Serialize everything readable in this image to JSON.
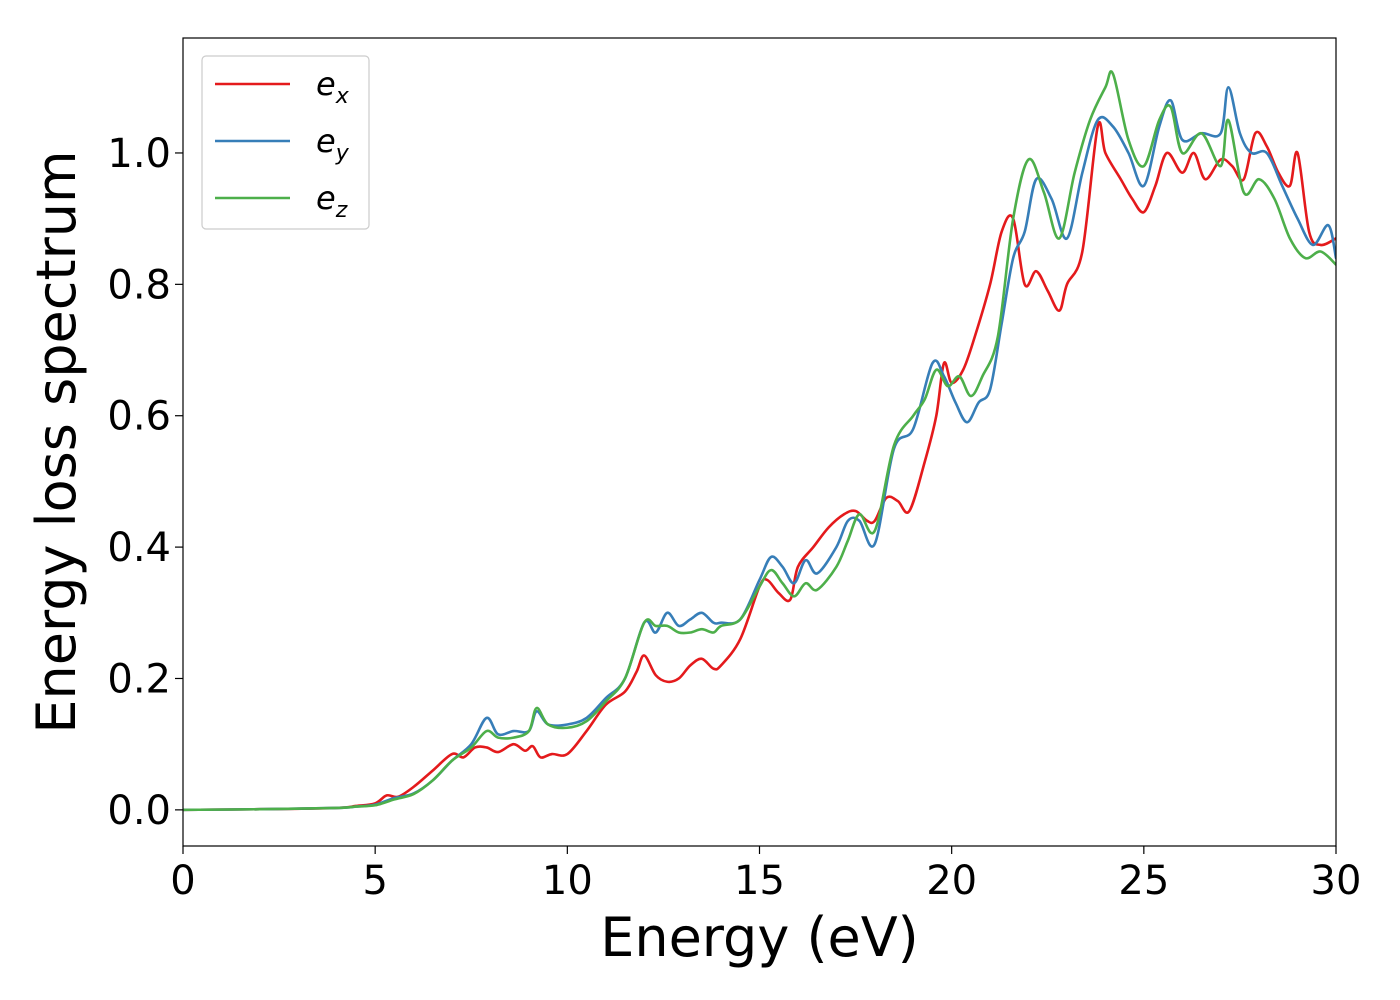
{
  "chart_data": {
    "type": "line",
    "title": "",
    "xlabel": "Energy (eV)",
    "ylabel": "Energy loss spectrum",
    "xlim": [
      0,
      30
    ],
    "ylim": [
      -0.055,
      1.175
    ],
    "xticks": [
      0,
      5,
      10,
      15,
      20,
      25,
      30
    ],
    "yticks": [
      0.0,
      0.2,
      0.4,
      0.6,
      0.8,
      1.0
    ],
    "ytick_labels": [
      "0.0",
      "0.2",
      "0.4",
      "0.6",
      "0.8",
      "1.0"
    ],
    "grid": false,
    "legend_position": "top-left",
    "series": [
      {
        "name": "e_x",
        "base": "e",
        "sub": "x",
        "color": "#e41a1c",
        "points": [
          [
            0,
            0
          ],
          [
            2,
            0.001
          ],
          [
            4,
            0.003
          ],
          [
            4.5,
            0.006
          ],
          [
            5,
            0.01
          ],
          [
            5.3,
            0.022
          ],
          [
            5.6,
            0.02
          ],
          [
            6,
            0.035
          ],
          [
            6.5,
            0.06
          ],
          [
            7,
            0.085
          ],
          [
            7.3,
            0.08
          ],
          [
            7.6,
            0.095
          ],
          [
            7.9,
            0.095
          ],
          [
            8.2,
            0.088
          ],
          [
            8.6,
            0.1
          ],
          [
            8.9,
            0.09
          ],
          [
            9.1,
            0.097
          ],
          [
            9.3,
            0.08
          ],
          [
            9.6,
            0.085
          ],
          [
            10,
            0.085
          ],
          [
            10.5,
            0.12
          ],
          [
            11,
            0.16
          ],
          [
            11.5,
            0.18
          ],
          [
            11.8,
            0.21
          ],
          [
            12,
            0.235
          ],
          [
            12.3,
            0.205
          ],
          [
            12.6,
            0.195
          ],
          [
            12.9,
            0.2
          ],
          [
            13.2,
            0.22
          ],
          [
            13.5,
            0.23
          ],
          [
            13.8,
            0.215
          ],
          [
            14,
            0.22
          ],
          [
            14.5,
            0.26
          ],
          [
            15,
            0.34
          ],
          [
            15.2,
            0.35
          ],
          [
            15.5,
            0.33
          ],
          [
            15.8,
            0.32
          ],
          [
            16,
            0.37
          ],
          [
            16.4,
            0.4
          ],
          [
            16.8,
            0.43
          ],
          [
            17.2,
            0.45
          ],
          [
            17.5,
            0.455
          ],
          [
            17.8,
            0.44
          ],
          [
            18,
            0.44
          ],
          [
            18.3,
            0.475
          ],
          [
            18.6,
            0.47
          ],
          [
            18.9,
            0.455
          ],
          [
            19.3,
            0.53
          ],
          [
            19.6,
            0.6
          ],
          [
            19.8,
            0.68
          ],
          [
            20,
            0.65
          ],
          [
            20.3,
            0.67
          ],
          [
            20.6,
            0.72
          ],
          [
            21,
            0.8
          ],
          [
            21.3,
            0.88
          ],
          [
            21.6,
            0.9
          ],
          [
            21.9,
            0.8
          ],
          [
            22.2,
            0.82
          ],
          [
            22.5,
            0.79
          ],
          [
            22.8,
            0.76
          ],
          [
            23,
            0.8
          ],
          [
            23.4,
            0.85
          ],
          [
            23.8,
            1.04
          ],
          [
            24,
            1.0
          ],
          [
            24.4,
            0.96
          ],
          [
            24.7,
            0.93
          ],
          [
            25,
            0.91
          ],
          [
            25.3,
            0.95
          ],
          [
            25.6,
            1.0
          ],
          [
            26,
            0.97
          ],
          [
            26.3,
            1.0
          ],
          [
            26.6,
            0.96
          ],
          [
            27,
            0.99
          ],
          [
            27.3,
            0.98
          ],
          [
            27.6,
            0.96
          ],
          [
            27.9,
            1.03
          ],
          [
            28.2,
            1.01
          ],
          [
            28.5,
            0.97
          ],
          [
            28.8,
            0.95
          ],
          [
            29,
            1.0
          ],
          [
            29.3,
            0.88
          ],
          [
            29.6,
            0.86
          ],
          [
            30,
            0.87
          ]
        ]
      },
      {
        "name": "e_y",
        "base": "e",
        "sub": "y",
        "color": "#377eb8",
        "points": [
          [
            0,
            0
          ],
          [
            2,
            0.001
          ],
          [
            4,
            0.003
          ],
          [
            4.5,
            0.005
          ],
          [
            5,
            0.008
          ],
          [
            5.5,
            0.018
          ],
          [
            6,
            0.025
          ],
          [
            6.5,
            0.045
          ],
          [
            7,
            0.075
          ],
          [
            7.5,
            0.1
          ],
          [
            7.9,
            0.14
          ],
          [
            8.2,
            0.115
          ],
          [
            8.6,
            0.12
          ],
          [
            9,
            0.12
          ],
          [
            9.2,
            0.15
          ],
          [
            9.5,
            0.13
          ],
          [
            10,
            0.13
          ],
          [
            10.5,
            0.14
          ],
          [
            11,
            0.17
          ],
          [
            11.5,
            0.2
          ],
          [
            12,
            0.285
          ],
          [
            12.3,
            0.27
          ],
          [
            12.6,
            0.3
          ],
          [
            12.9,
            0.28
          ],
          [
            13.2,
            0.29
          ],
          [
            13.5,
            0.3
          ],
          [
            13.8,
            0.285
          ],
          [
            14,
            0.285
          ],
          [
            14.5,
            0.29
          ],
          [
            15,
            0.35
          ],
          [
            15.3,
            0.385
          ],
          [
            15.6,
            0.37
          ],
          [
            15.9,
            0.345
          ],
          [
            16.2,
            0.38
          ],
          [
            16.5,
            0.36
          ],
          [
            17,
            0.4
          ],
          [
            17.3,
            0.44
          ],
          [
            17.6,
            0.44
          ],
          [
            18,
            0.405
          ],
          [
            18.5,
            0.55
          ],
          [
            19,
            0.58
          ],
          [
            19.5,
            0.68
          ],
          [
            19.8,
            0.66
          ],
          [
            20.1,
            0.62
          ],
          [
            20.4,
            0.59
          ],
          [
            20.7,
            0.62
          ],
          [
            21,
            0.64
          ],
          [
            21.3,
            0.74
          ],
          [
            21.6,
            0.84
          ],
          [
            21.9,
            0.88
          ],
          [
            22.2,
            0.96
          ],
          [
            22.6,
            0.93
          ],
          [
            23,
            0.87
          ],
          [
            23.4,
            0.97
          ],
          [
            23.8,
            1.05
          ],
          [
            24.2,
            1.04
          ],
          [
            24.6,
            1.0
          ],
          [
            25,
            0.95
          ],
          [
            25.4,
            1.04
          ],
          [
            25.7,
            1.08
          ],
          [
            26,
            1.02
          ],
          [
            26.5,
            1.03
          ],
          [
            27,
            1.03
          ],
          [
            27.2,
            1.1
          ],
          [
            27.5,
            1.03
          ],
          [
            27.8,
            1.0
          ],
          [
            28.2,
            1.0
          ],
          [
            28.6,
            0.95
          ],
          [
            29,
            0.9
          ],
          [
            29.4,
            0.86
          ],
          [
            29.8,
            0.89
          ],
          [
            30,
            0.84
          ]
        ]
      },
      {
        "name": "e_z",
        "base": "e",
        "sub": "z",
        "color": "#4daf4a",
        "points": [
          [
            0,
            0
          ],
          [
            2,
            0.001
          ],
          [
            4,
            0.003
          ],
          [
            4.5,
            0.005
          ],
          [
            5,
            0.007
          ],
          [
            5.5,
            0.016
          ],
          [
            6,
            0.024
          ],
          [
            6.5,
            0.045
          ],
          [
            7,
            0.075
          ],
          [
            7.5,
            0.095
          ],
          [
            7.9,
            0.12
          ],
          [
            8.2,
            0.11
          ],
          [
            8.6,
            0.11
          ],
          [
            9,
            0.12
          ],
          [
            9.2,
            0.155
          ],
          [
            9.5,
            0.13
          ],
          [
            10,
            0.125
          ],
          [
            10.5,
            0.135
          ],
          [
            11,
            0.165
          ],
          [
            11.5,
            0.2
          ],
          [
            12,
            0.285
          ],
          [
            12.3,
            0.28
          ],
          [
            12.6,
            0.28
          ],
          [
            12.9,
            0.27
          ],
          [
            13.2,
            0.27
          ],
          [
            13.5,
            0.275
          ],
          [
            13.8,
            0.27
          ],
          [
            14,
            0.28
          ],
          [
            14.5,
            0.29
          ],
          [
            15,
            0.34
          ],
          [
            15.3,
            0.365
          ],
          [
            15.6,
            0.345
          ],
          [
            15.9,
            0.325
          ],
          [
            16.2,
            0.345
          ],
          [
            16.5,
            0.335
          ],
          [
            17,
            0.37
          ],
          [
            17.3,
            0.41
          ],
          [
            17.6,
            0.45
          ],
          [
            18,
            0.425
          ],
          [
            18.5,
            0.555
          ],
          [
            19,
            0.6
          ],
          [
            19.3,
            0.625
          ],
          [
            19.6,
            0.67
          ],
          [
            19.9,
            0.645
          ],
          [
            20.2,
            0.66
          ],
          [
            20.5,
            0.63
          ],
          [
            20.8,
            0.66
          ],
          [
            21.2,
            0.72
          ],
          [
            21.6,
            0.9
          ],
          [
            22,
            0.99
          ],
          [
            22.4,
            0.94
          ],
          [
            22.8,
            0.87
          ],
          [
            23.2,
            0.97
          ],
          [
            23.6,
            1.05
          ],
          [
            24,
            1.1
          ],
          [
            24.2,
            1.12
          ],
          [
            24.6,
            1.02
          ],
          [
            25,
            0.98
          ],
          [
            25.4,
            1.05
          ],
          [
            25.7,
            1.07
          ],
          [
            26,
            1.0
          ],
          [
            26.5,
            1.03
          ],
          [
            27,
            0.98
          ],
          [
            27.2,
            1.05
          ],
          [
            27.6,
            0.94
          ],
          [
            28,
            0.96
          ],
          [
            28.4,
            0.93
          ],
          [
            28.8,
            0.87
          ],
          [
            29.2,
            0.84
          ],
          [
            29.6,
            0.85
          ],
          [
            30,
            0.83
          ]
        ]
      }
    ]
  }
}
